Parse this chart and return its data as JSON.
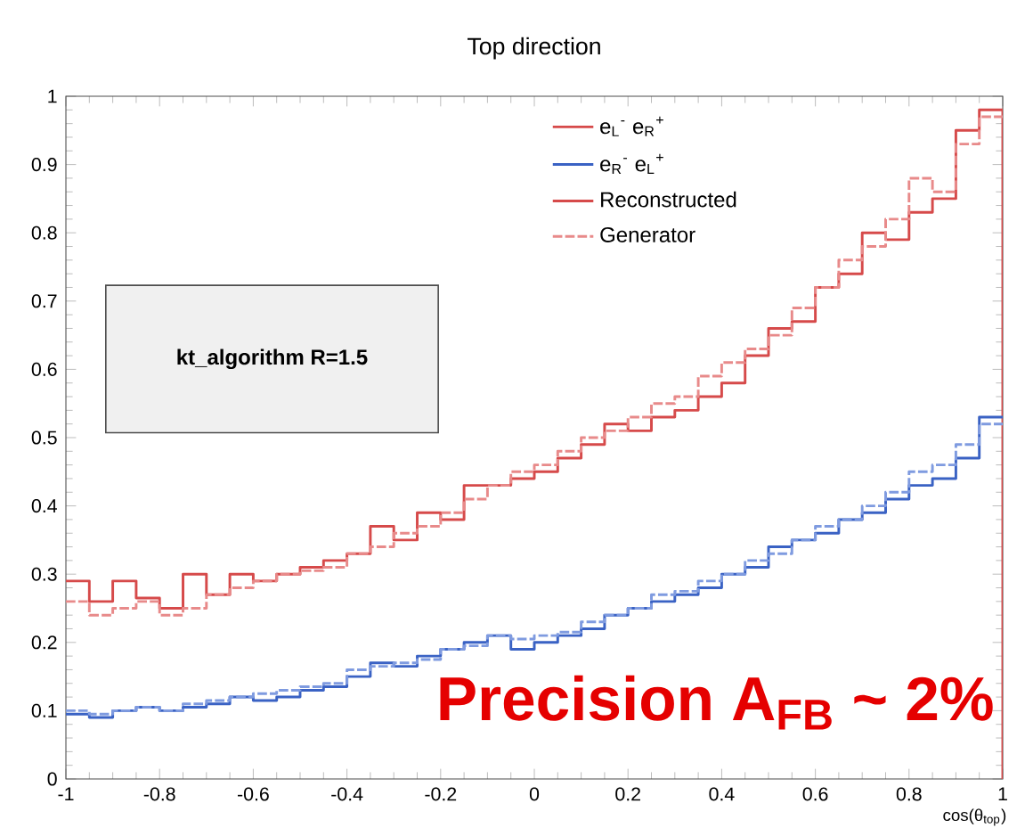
{
  "chart_data": {
    "type": "histogram",
    "title": "Top direction",
    "xlabel": "cos(θ$_{top}$)",
    "bins": [
      -1,
      -0.95,
      -0.9,
      -0.85,
      -0.8,
      -0.75,
      -0.7,
      -0.65,
      -0.6,
      -0.55,
      -0.5,
      -0.45,
      -0.4,
      -0.35,
      -0.3,
      -0.25,
      -0.2,
      -0.15,
      -0.1,
      -0.05,
      0,
      0.05,
      0.1,
      0.15,
      0.2,
      0.25,
      0.3,
      0.35,
      0.4,
      0.45,
      0.5,
      0.55,
      0.6,
      0.65,
      0.7,
      0.75,
      0.8,
      0.85,
      0.9,
      0.95,
      1
    ],
    "series": [
      {
        "name": "e$_{L}$$^{-}$ e$_{R}$$^{+}$",
        "color": "#d64a4a",
        "line_style": "solid",
        "values": [
          0.29,
          0.26,
          0.29,
          0.265,
          0.25,
          0.3,
          0.27,
          0.3,
          0.29,
          0.3,
          0.31,
          0.32,
          0.33,
          0.37,
          0.35,
          0.39,
          0.38,
          0.43,
          0.43,
          0.44,
          0.45,
          0.47,
          0.49,
          0.52,
          0.51,
          0.53,
          0.54,
          0.56,
          0.58,
          0.62,
          0.66,
          0.67,
          0.72,
          0.74,
          0.8,
          0.79,
          0.83,
          0.85,
          0.95,
          0.98
        ]
      },
      {
        "name": "e$_{R}$$^{-}$ e$_{L}$$^{+}$",
        "color": "#3a62c4",
        "line_style": "solid",
        "values": [
          0.095,
          0.09,
          0.1,
          0.105,
          0.1,
          0.105,
          0.11,
          0.12,
          0.115,
          0.12,
          0.13,
          0.135,
          0.15,
          0.17,
          0.165,
          0.18,
          0.19,
          0.2,
          0.21,
          0.19,
          0.2,
          0.21,
          0.22,
          0.24,
          0.25,
          0.26,
          0.27,
          0.28,
          0.3,
          0.31,
          0.34,
          0.35,
          0.36,
          0.38,
          0.39,
          0.41,
          0.43,
          0.44,
          0.47,
          0.53
        ]
      },
      {
        "name": "Generator",
        "color": "#e88a8a",
        "line_style": "dashed",
        "values": [
          0.26,
          0.24,
          0.25,
          0.26,
          0.24,
          0.25,
          0.27,
          0.28,
          0.29,
          0.3,
          0.305,
          0.31,
          0.33,
          0.34,
          0.36,
          0.37,
          0.39,
          0.41,
          0.43,
          0.45,
          0.46,
          0.48,
          0.5,
          0.51,
          0.53,
          0.55,
          0.56,
          0.59,
          0.61,
          0.63,
          0.65,
          0.69,
          0.72,
          0.76,
          0.78,
          0.82,
          0.88,
          0.86,
          0.93,
          0.97
        ]
      },
      {
        "color": "#7f9be0",
        "line_style": "dashed",
        "values": [
          0.1,
          0.095,
          0.1,
          0.105,
          0.1,
          0.11,
          0.115,
          0.12,
          0.125,
          0.13,
          0.135,
          0.14,
          0.16,
          0.165,
          0.17,
          0.175,
          0.19,
          0.195,
          0.21,
          0.205,
          0.21,
          0.215,
          0.23,
          0.24,
          0.25,
          0.27,
          0.275,
          0.29,
          0.3,
          0.32,
          0.33,
          0.35,
          0.37,
          0.38,
          0.4,
          0.42,
          0.45,
          0.46,
          0.49,
          0.52
        ]
      }
    ],
    "annotations": [
      "Reconstructed",
      "kt_algorithm R=1.5",
      "Precision A$_{FB}$ ~ 2%"
    ],
    "xlim": [
      -1,
      1
    ],
    "ylim": [
      0,
      1
    ],
    "xticks": [
      -1,
      -0.8,
      -0.6,
      -0.4,
      -0.2,
      0,
      0.2,
      0.4,
      0.6,
      0.8,
      1
    ],
    "yticks": [
      0,
      0.1,
      0.2,
      0.3,
      0.4,
      0.5,
      0.6,
      0.7,
      0.8,
      0.9,
      1
    ],
    "legend": "top",
    "grid": false
  }
}
